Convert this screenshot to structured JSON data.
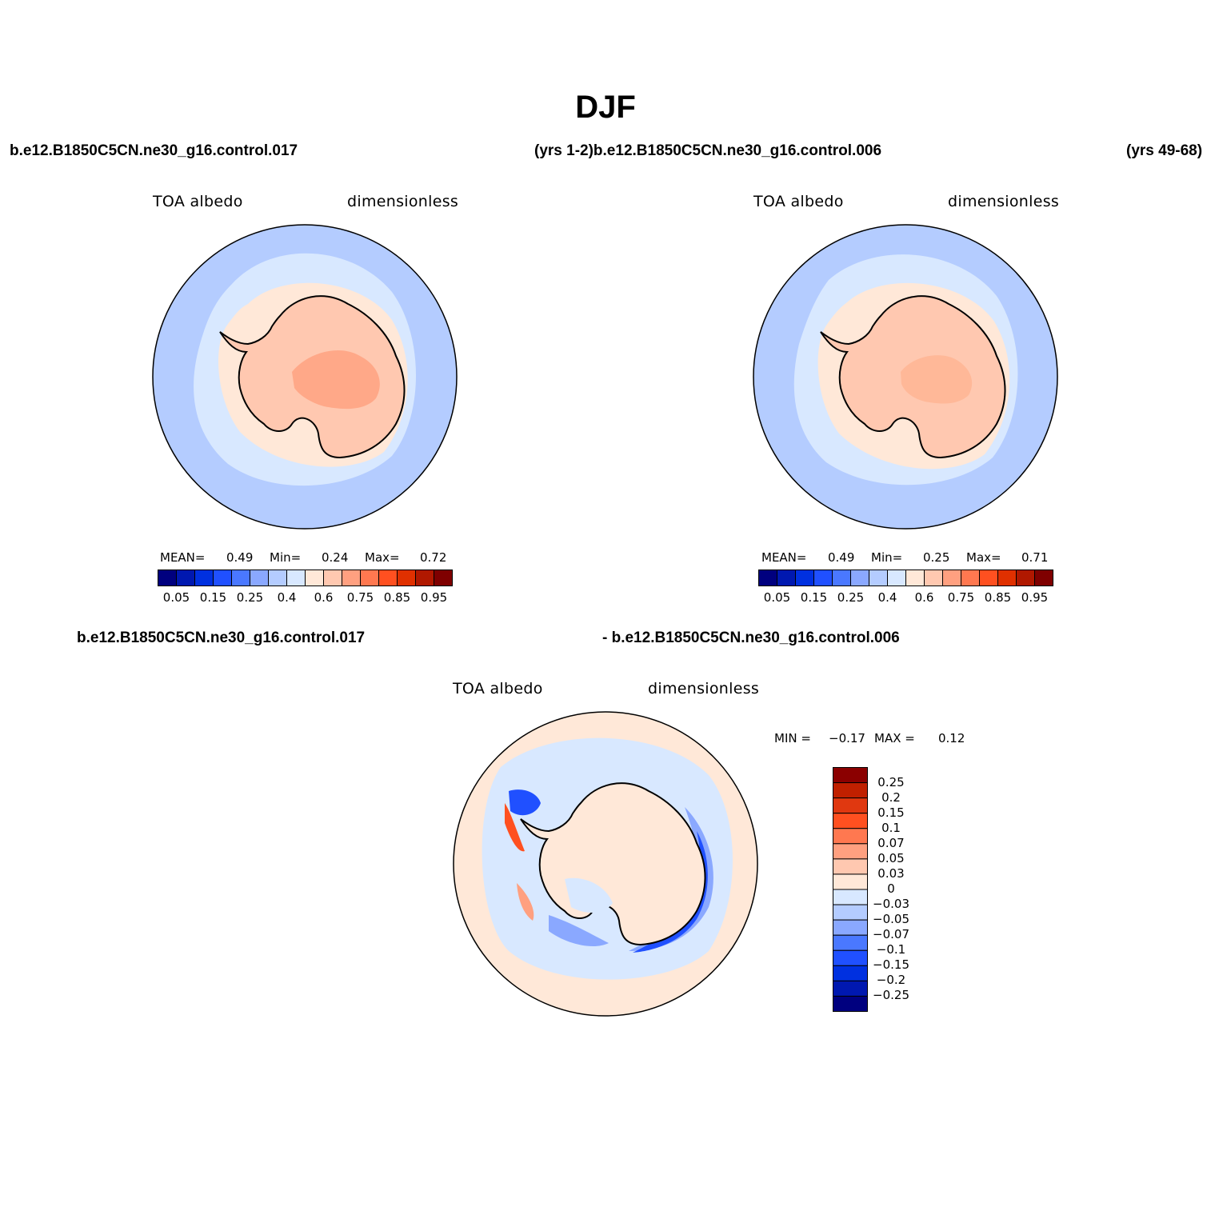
{
  "figure": {
    "title": "DJF",
    "case_top_left": "b.e12.B1850C5CN.ne30_g16.control.017",
    "case_top_mid": "(yrs 1-2)b.e12.B1850C5CN.ne30_g16.control.006",
    "case_top_right": "(yrs 49-68)",
    "case_diff_left": "b.e12.B1850C5CN.ne30_g16.control.017",
    "case_diff_right": "- b.e12.B1850C5CN.ne30_g16.control.006"
  },
  "panel1": {
    "variable": "TOA albedo",
    "units": "dimensionless",
    "mean_label": "MEAN=",
    "mean": "0.49",
    "min_label": "Min=",
    "min": "0.24",
    "max_label": "Max=",
    "max": "0.72"
  },
  "panel2": {
    "variable": "TOA albedo",
    "units": "dimensionless",
    "mean_label": "MEAN=",
    "mean": "0.49",
    "min_label": "Min=",
    "min": "0.25",
    "max_label": "Max=",
    "max": "0.71"
  },
  "panel3": {
    "variable": "TOA albedo",
    "units": "dimensionless",
    "min_label": "MIN =",
    "min": "−0.17",
    "max_label": "MAX =",
    "max": "0.12"
  },
  "colorbar_abs": {
    "colors": [
      "#00007f",
      "#0018b0",
      "#0030e0",
      "#2050ff",
      "#4a78ff",
      "#8aa8ff",
      "#b4ccff",
      "#d8e8ff",
      "#ffe8d8",
      "#ffc8b0",
      "#ffa080",
      "#ff7850",
      "#ff5020",
      "#e03000",
      "#b01800",
      "#7f0000"
    ],
    "tick_labels": [
      "0.05",
      "0.15",
      "0.25",
      "0.4",
      "0.6",
      "0.75",
      "0.85",
      "0.95"
    ]
  },
  "colorbar_diff": {
    "colors_top_to_bottom": [
      "#8b0000",
      "#c02000",
      "#e03810",
      "#ff5020",
      "#ff7850",
      "#ffa080",
      "#ffc8b0",
      "#ffe8d8",
      "#d8e8ff",
      "#b4ccff",
      "#8aa8ff",
      "#4a78ff",
      "#2050ff",
      "#0030e0",
      "#0018b0",
      "#00007f"
    ],
    "tick_labels": [
      "0.25",
      "0.2",
      "0.15",
      "0.1",
      "0.07",
      "0.05",
      "0.03",
      "0",
      "−0.03",
      "−0.05",
      "−0.07",
      "−0.1",
      "−0.15",
      "−0.2",
      "−0.25"
    ]
  },
  "map_colors": {
    "ocean_outer": "#b4ccff",
    "ocean_inner": "#d8e8ff",
    "sea_ice": "#ffe8d8",
    "land": "#ffc8b0",
    "plateau": "#ffa888",
    "diff_background": "#ffe8d8",
    "diff_light_blue": "#d8e8ff",
    "diff_mid_blue": "#8aa8ff",
    "diff_strong_blue": "#2050ff",
    "diff_light_red": "#ffa080",
    "diff_strong_red": "#ff5020"
  }
}
